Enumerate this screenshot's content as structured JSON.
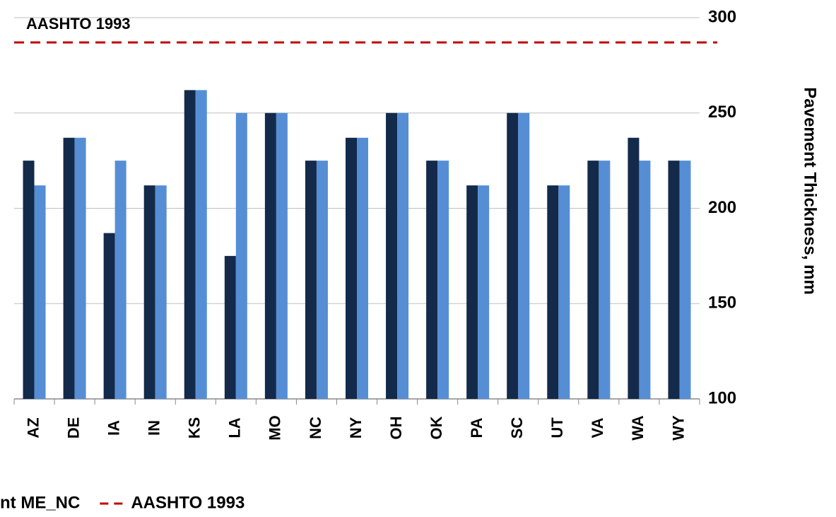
{
  "chart_data": {
    "type": "bar",
    "y_axis_label": "Pavement Thickness, mm",
    "categories": [
      "AZ",
      "DE",
      "IA",
      "IN",
      "KS",
      "LA",
      "MO",
      "NC",
      "NY",
      "OH",
      "OK",
      "PA",
      "SC",
      "UT",
      "VA",
      "WA",
      "WY"
    ],
    "series": [
      {
        "color": "#132a4a",
        "values": [
          225,
          237,
          187,
          212,
          262,
          175,
          250,
          225,
          237,
          250,
          225,
          212,
          250,
          212,
          225,
          237,
          225
        ]
      },
      {
        "name": "nt ME_NC",
        "color": "#558ed5",
        "values": [
          212,
          237,
          225,
          212,
          262,
          250,
          250,
          225,
          237,
          250,
          225,
          212,
          250,
          212,
          225,
          225,
          225
        ]
      }
    ],
    "reference_lines": [
      {
        "name": "AASHTO 1993",
        "value": 287,
        "color": "#c00000"
      }
    ],
    "ylim": [
      100,
      300
    ],
    "yticks": [
      100,
      150,
      200,
      250,
      300
    ],
    "y_axis_side": "right",
    "grid": true
  }
}
